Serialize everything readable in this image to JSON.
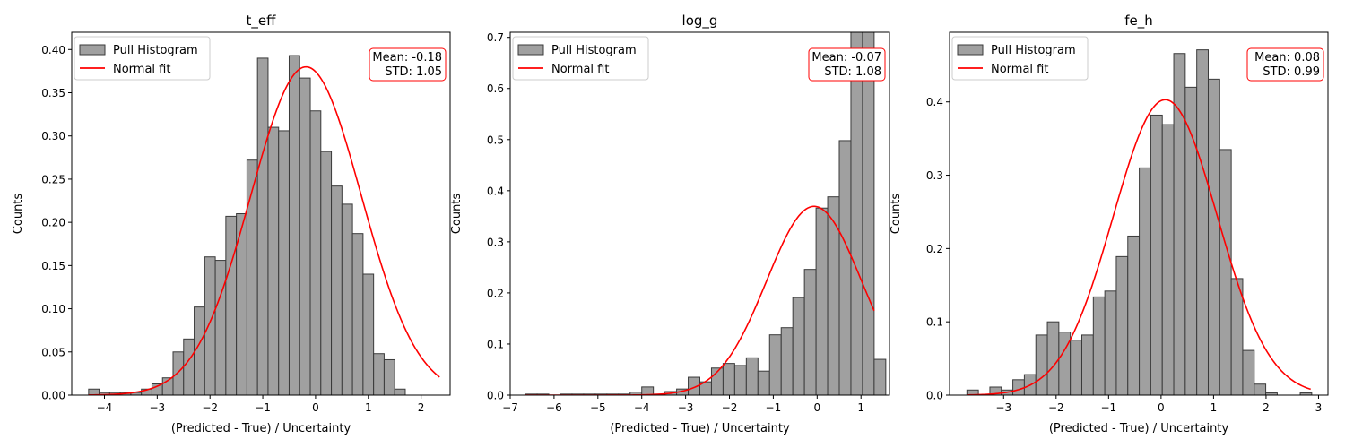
{
  "figure": {
    "legend": {
      "hist_label": "Pull Histogram",
      "fit_label": "Normal fit",
      "placement": "upper-left"
    },
    "colors": {
      "bar_fill": "#a0a0a0",
      "bar_edge": "#3a3a3a",
      "fit_line": "#ff0000",
      "stats_box_edge": "#ff0000"
    }
  },
  "chart_data": [
    {
      "type": "bar",
      "title": "t_eff",
      "xlabel": "(Predicted - True) / Uncertainty",
      "ylabel": "Counts",
      "xlim": [
        -4.62,
        2.55
      ],
      "ylim": [
        0,
        0.42
      ],
      "xticks": [
        -4,
        -3,
        -2,
        -1,
        0,
        1,
        2
      ],
      "xtick_labels": [
        "−4",
        "−3",
        "−2",
        "−1",
        "0",
        "1",
        "2"
      ],
      "yticks": [
        0,
        0.05,
        0.1,
        0.15,
        0.2,
        0.25,
        0.3,
        0.35,
        0.4
      ],
      "ytick_labels": [
        "0.00",
        "0.05",
        "0.10",
        "0.15",
        "0.20",
        "0.25",
        "0.30",
        "0.35",
        "0.40"
      ],
      "bin_start": -4.3,
      "bin_width": 0.2,
      "counts": [
        0.007,
        0.003,
        0.003,
        0.003,
        0.003,
        0.007,
        0.013,
        0.02,
        0.05,
        0.065,
        0.102,
        0.16,
        0.156,
        0.207,
        0.21,
        0.272,
        0.39,
        0.31,
        0.306,
        0.393,
        0.367,
        0.329,
        0.282,
        0.242,
        0.221,
        0.187,
        0.14,
        0.048,
        0.041,
        0.007
      ],
      "fit": {
        "mean": -0.18,
        "std": 1.05,
        "x_range": [
          -4.3,
          2.35
        ]
      },
      "stats": {
        "mean_text": "Mean: -0.18",
        "std_text": "STD: 1.05"
      }
    },
    {
      "type": "bar",
      "title": "log_g",
      "xlabel": "(Predicted - True) / Uncertainty",
      "ylabel": "Counts",
      "xlim": [
        -7.0,
        1.65
      ],
      "ylim": [
        0,
        0.71
      ],
      "xticks": [
        -7,
        -6,
        -5,
        -4,
        -3,
        -2,
        -1,
        0,
        1
      ],
      "xtick_labels": [
        "−7",
        "−6",
        "−5",
        "−4",
        "−3",
        "−2",
        "−1",
        "0",
        "1"
      ],
      "yticks": [
        0,
        0.1,
        0.2,
        0.3,
        0.4,
        0.5,
        0.6,
        0.7
      ],
      "ytick_labels": [
        "0.0",
        "0.1",
        "0.2",
        "0.3",
        "0.4",
        "0.5",
        "0.6",
        "0.7"
      ],
      "bin_start": -6.65,
      "bin_width": 0.265,
      "counts": [
        0.002,
        0.002,
        0.0,
        0.002,
        0.002,
        0.002,
        0.002,
        0.002,
        0.002,
        0.006,
        0.016,
        0.002,
        0.007,
        0.012,
        0.035,
        0.026,
        0.053,
        0.062,
        0.058,
        0.073,
        0.047,
        0.118,
        0.132,
        0.191,
        0.246,
        0.366,
        0.388,
        0.498,
        0.71,
        0.71,
        0.07
      ],
      "fit": {
        "mean": -0.07,
        "std": 1.08,
        "x_range": [
          -6.65,
          1.3
        ]
      },
      "stats": {
        "mean_text": "Mean: -0.07",
        "std_text": "STD: 1.08"
      }
    },
    {
      "type": "bar",
      "title": "fe_h",
      "xlabel": "(Predicted - True) / Uncertainty",
      "ylabel": "Counts",
      "xlim": [
        -4.03,
        3.18
      ],
      "ylim": [
        0,
        0.495
      ],
      "xticks": [
        -3,
        -2,
        -1,
        0,
        1,
        2,
        3
      ],
      "xtick_labels": [
        "−3",
        "−2",
        "−1",
        "0",
        "1",
        "2",
        "3"
      ],
      "yticks": [
        0,
        0.1,
        0.2,
        0.3,
        0.4
      ],
      "ytick_labels": [
        "0.0",
        "0.1",
        "0.2",
        "0.3",
        "0.4"
      ],
      "bin_start": -3.7,
      "bin_width": 0.219,
      "counts": [
        0.007,
        0.0,
        0.011,
        0.007,
        0.021,
        0.028,
        0.082,
        0.1,
        0.086,
        0.075,
        0.082,
        0.134,
        0.142,
        0.189,
        0.217,
        0.31,
        0.382,
        0.369,
        0.466,
        0.42,
        0.471,
        0.431,
        0.335,
        0.159,
        0.061,
        0.015,
        0.003,
        0.0,
        0.0,
        0.003
      ],
      "fit": {
        "mean": 0.08,
        "std": 0.99,
        "x_range": [
          -3.7,
          2.85
        ]
      },
      "stats": {
        "mean_text": "Mean: 0.08",
        "std_text": "STD: 0.99"
      }
    }
  ]
}
